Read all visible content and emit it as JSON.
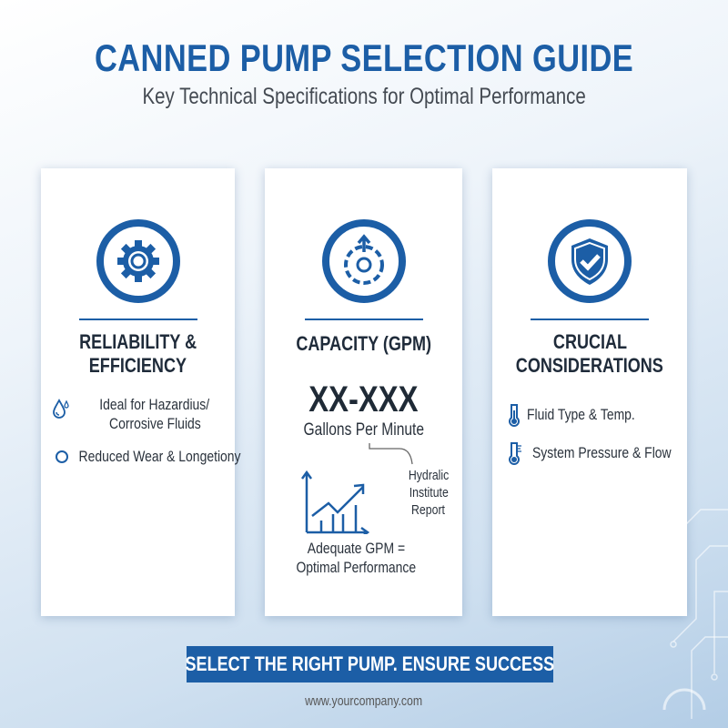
{
  "header": {
    "title": "CANNED PUMP SELECTION GUIDE",
    "subtitle": "Key Technical Specifications for Optimal Performance"
  },
  "cards": [
    {
      "icon": "gear-icon",
      "heading_line1": "RELIABILITY &",
      "heading_line2": "EFFICIENCY",
      "items": [
        {
          "icon": "water-drop-icon",
          "line1": "Ideal for Hazardius/",
          "line2": "Corrosive Fluids"
        },
        {
          "icon": "circle-icon",
          "line1": "Reduced Wear & Longetiony"
        }
      ]
    },
    {
      "icon": "pump-flow-icon",
      "heading_line1": "CAPACITY (GPM)",
      "value": "XX-XXX",
      "unit": "Gallons Per Minute",
      "callout": [
        "Hydralic",
        "Institute",
        "Report"
      ],
      "chart_icon": "growth-chart-icon",
      "caption_line1": "Adequate GPM =",
      "caption_line2": "Optimal Performance"
    },
    {
      "icon": "shield-check-icon",
      "heading_line1": "CRUCIAL",
      "heading_line2": "CONSIDERATIONS",
      "items": [
        {
          "icon": "thermometer-icon",
          "line1": "Fluid Type & Temp."
        },
        {
          "icon": "thermometer-gauge-icon",
          "line1": "System Pressure & Flow"
        }
      ]
    }
  ],
  "banner": "SELECT THE RIGHT PUMP. ENSURE SUCCESS",
  "footer": "www.yourcompany.com",
  "colors": {
    "accent": "#1c5ea6",
    "text": "#1f2b3a"
  }
}
